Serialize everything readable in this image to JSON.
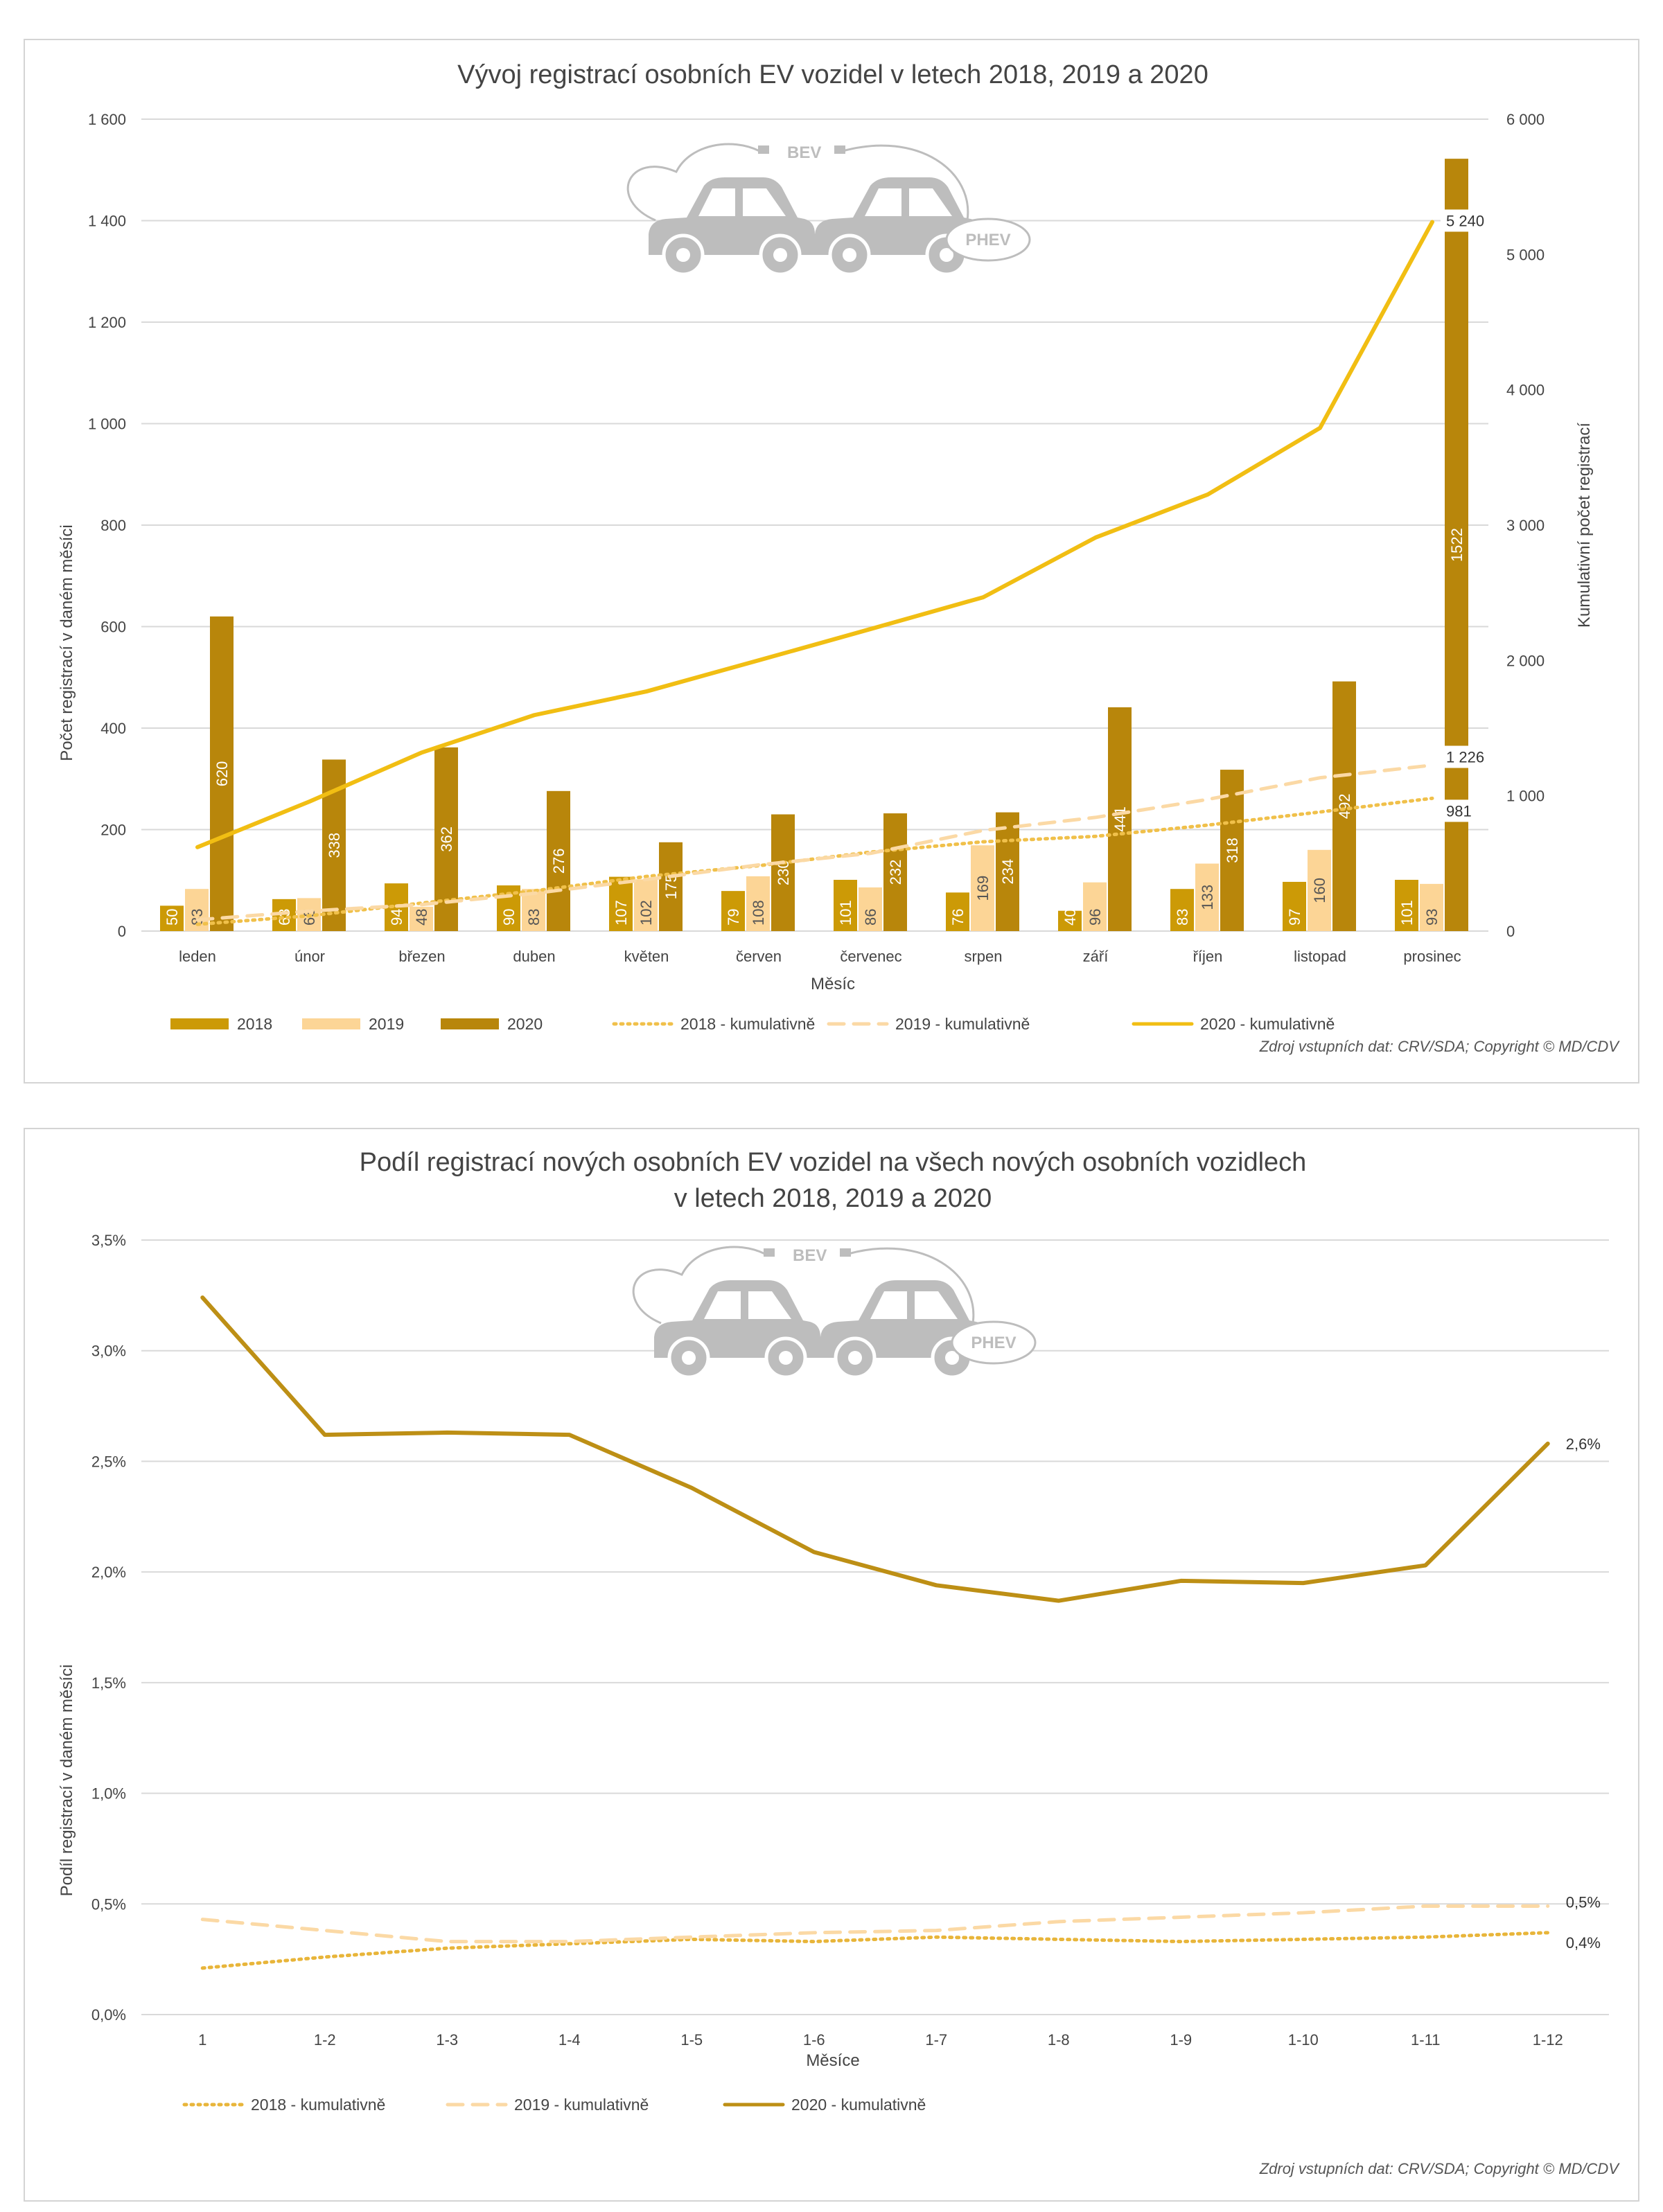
{
  "chart_data": [
    {
      "type": "bar",
      "title": "Vývoj registrací osobních EV vozidel v letech 2018, 2019 a 2020",
      "xlabel": "Měsíc",
      "ylabel": "Počet registrací v daném měsíci",
      "y2label": "Kumulativní počet registrací",
      "ylim": [
        0,
        1600
      ],
      "y2lim": [
        0,
        6000
      ],
      "yticks": [
        "0",
        "200",
        "400",
        "600",
        "800",
        "1 000",
        "1 200",
        "1 400",
        "1 600"
      ],
      "y2ticks": [
        "0",
        "1 000",
        "2 000",
        "3 000",
        "4 000",
        "5 000",
        "6 000"
      ],
      "categories": [
        "leden",
        "únor",
        "březen",
        "duben",
        "květen",
        "červen",
        "červenec",
        "srpen",
        "září",
        "říjen",
        "listopad",
        "prosinec"
      ],
      "series": [
        {
          "name": "2018",
          "values": [
            50,
            63,
            94,
            90,
            107,
            79,
            101,
            76,
            40,
            83,
            97,
            101
          ],
          "color": "#cc9a06"
        },
        {
          "name": "2019",
          "values": [
            83,
            65,
            48,
            83,
            102,
            108,
            86,
            169,
            96,
            133,
            160,
            93
          ],
          "color": "#fcd596"
        },
        {
          "name": "2020",
          "values": [
            620,
            338,
            362,
            276,
            175,
            230,
            232,
            234,
            441,
            318,
            492,
            1522
          ],
          "color": "#b8860b"
        }
      ],
      "cumulative_series": [
        {
          "name": "2018 - kumulativně",
          "values": [
            50,
            113,
            207,
            297,
            404,
            483,
            584,
            660,
            700,
            783,
            880,
            981
          ],
          "style": "dotted",
          "color": "#f0c04a",
          "end_label": "981"
        },
        {
          "name": "2019 - kumulativně",
          "values": [
            83,
            148,
            196,
            279,
            381,
            489,
            575,
            744,
            840,
            973,
            1133,
            1226
          ],
          "style": "dashed",
          "color": "#fbd9a5",
          "end_label": "1 226"
        },
        {
          "name": "2020 - kumulativně",
          "values": [
            620,
            958,
            1320,
            1596,
            1771,
            2001,
            2233,
            2467,
            2908,
            3226,
            3718,
            5240
          ],
          "style": "solid",
          "color": "#f1be13",
          "end_label": "5 240"
        }
      ],
      "icons": {
        "bev_label": "BEV",
        "phev_label": "PHEV"
      },
      "source": "Zdroj vstupních dat: CRV/SDA; Copyright © MD/CDV"
    },
    {
      "type": "line",
      "title_line1": "Podíl registrací nových osobních EV vozidel na všech nových osobních vozidlech",
      "title_line2": "v letech 2018, 2019 a 2020",
      "xlabel": "Měsíce",
      "ylabel": "Podíl registrací v daném měsíci",
      "ylim": [
        0,
        3.5
      ],
      "yticks": [
        "0,0%",
        "0,5%",
        "1,0%",
        "1,5%",
        "2,0%",
        "2,5%",
        "3,0%",
        "3,5%"
      ],
      "categories": [
        "1",
        "1-2",
        "1-3",
        "1-4",
        "1-5",
        "1-6",
        "1-7",
        "1-8",
        "1-9",
        "1-10",
        "1-11",
        "1-12"
      ],
      "series": [
        {
          "name": "2018 - kumulativně",
          "values": [
            0.21,
            0.26,
            0.3,
            0.32,
            0.34,
            0.33,
            0.35,
            0.34,
            0.33,
            0.34,
            0.35,
            0.37
          ],
          "style": "dotted",
          "color": "#e8b53a",
          "end_label": "0,4%"
        },
        {
          "name": "2019 - kumulativně",
          "values": [
            0.43,
            0.38,
            0.33,
            0.33,
            0.35,
            0.37,
            0.38,
            0.42,
            0.44,
            0.46,
            0.49,
            0.49
          ],
          "style": "dashed",
          "color": "#fbd9a5",
          "end_label": "0,5%"
        },
        {
          "name": "2020 - kumulativně",
          "values": [
            3.24,
            2.62,
            2.63,
            2.62,
            2.38,
            2.09,
            1.94,
            1.87,
            1.96,
            1.95,
            2.03,
            2.58
          ],
          "style": "solid",
          "color": "#bd8f15",
          "end_label": "2,6%"
        }
      ],
      "icons": {
        "bev_label": "BEV",
        "phev_label": "PHEV"
      },
      "source": "Zdroj vstupních dat: CRV/SDA; Copyright © MD/CDV"
    }
  ]
}
